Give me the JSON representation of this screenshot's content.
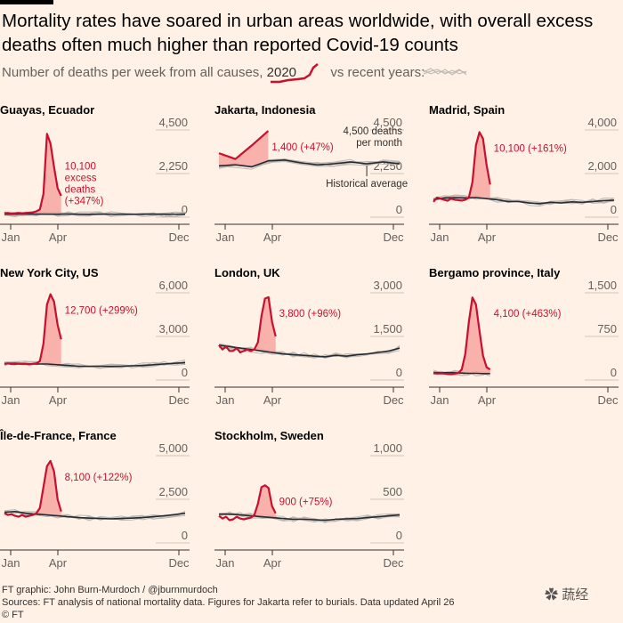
{
  "title": "Mortality rates have soared in urban areas worldwide, with overall excess deaths often much higher than reported Covid-19 counts",
  "subtitle_prefix": "Number of deaths per week from all causes,",
  "subtitle_year": "2020",
  "subtitle_suffix": "vs recent years:",
  "colors": {
    "highlight": "#c8102e",
    "fill": "#f7a6a1",
    "average": "#262a33",
    "history": "#bdb7b0",
    "bg": "#fff1e5"
  },
  "x_ticks": [
    "Jan",
    "Apr",
    "Dec"
  ],
  "footer": {
    "credit": "FT graphic: John Burn-Murdoch / @jburnmurdoch",
    "sources": "Sources: FT analysis of national mortality data. Figures for Jakarta refer to burials. Data updated April 26",
    "copyright": "© FT"
  },
  "watermark": "蔬经",
  "chart_data": [
    {
      "type": "line",
      "title": "Guayas, Ecuador",
      "yticks": [
        0,
        2250,
        4500
      ],
      "ytick_labels": [
        "0",
        "2,250",
        "4,500"
      ],
      "ylim": [
        0,
        4500
      ],
      "xlim": [
        1,
        52
      ],
      "series": [
        {
          "values_x": [
            1,
            2,
            3,
            4,
            5,
            6,
            7,
            8,
            9,
            10,
            11,
            12,
            13,
            14,
            15,
            16,
            17
          ],
          "values": [
            200,
            210,
            190,
            200,
            220,
            200,
            210,
            230,
            250,
            300,
            400,
            1200,
            4300,
            3800,
            2600,
            1500,
            1100
          ]
        },
        {
          "values_x": [
            1,
            4,
            7,
            10,
            13,
            16,
            19,
            22,
            25,
            28,
            31,
            34,
            37,
            40,
            43,
            46,
            49,
            52
          ],
          "values": [
            150,
            150,
            160,
            155,
            150,
            150,
            155,
            150,
            145,
            150,
            155,
            150,
            150,
            150,
            155,
            150,
            150,
            150
          ]
        }
      ],
      "annotation": [
        "10,100",
        "excess",
        "deaths",
        "(+347%)"
      ]
    },
    {
      "type": "line",
      "title": "Jakarta, Indonesia",
      "yticks": [
        0,
        2250,
        4500
      ],
      "ytick_labels": [
        "0",
        "2,250",
        "4,500"
      ],
      "ylim": [
        0,
        4500
      ],
      "xlim": [
        1,
        12
      ],
      "unit_note": [
        "4,500 deaths",
        "per month"
      ],
      "series": [
        {
          "values_x": [
            1,
            2,
            3,
            4
          ],
          "values": [
            3300,
            3000,
            3700,
            4450
          ]
        },
        {
          "values_x": [
            1,
            2,
            3,
            4,
            5,
            6,
            7,
            8,
            9,
            10,
            11,
            12
          ],
          "values": [
            2650,
            2700,
            2600,
            2900,
            2950,
            2800,
            2700,
            2750,
            2850,
            2750,
            2850,
            2750
          ]
        }
      ],
      "annotation": [
        "1,400 (+47%)"
      ],
      "average_label": "Historical average"
    },
    {
      "type": "line",
      "title": "Madrid, Spain",
      "yticks": [
        0,
        2000,
        4000
      ],
      "ytick_labels": [
        "0",
        "2,000",
        "4,000"
      ],
      "ylim": [
        0,
        4000
      ],
      "xlim": [
        1,
        52
      ],
      "series": [
        {
          "values_x": [
            1,
            2,
            3,
            4,
            5,
            6,
            7,
            8,
            9,
            10,
            11,
            12,
            13,
            14,
            15,
            16,
            17
          ],
          "values": [
            700,
            900,
            850,
            800,
            750,
            850,
            800,
            780,
            760,
            800,
            900,
            1600,
            3300,
            3900,
            3600,
            2400,
            1500
          ]
        },
        {
          "values_x": [
            1,
            4,
            7,
            10,
            13,
            16,
            19,
            22,
            25,
            28,
            31,
            34,
            37,
            40,
            43,
            46,
            49,
            52
          ],
          "values": [
            800,
            880,
            900,
            880,
            900,
            850,
            800,
            720,
            720,
            650,
            620,
            680,
            650,
            700,
            680,
            720,
            760,
            780
          ]
        }
      ],
      "annotation": [
        "10,100 (+161%)"
      ]
    },
    {
      "type": "line",
      "title": "New York City, US",
      "yticks": [
        0,
        3000,
        6000
      ],
      "ytick_labels": [
        "0",
        "3,000",
        "6,000"
      ],
      "ylim": [
        0,
        6000
      ],
      "xlim": [
        1,
        52
      ],
      "series": [
        {
          "values_x": [
            1,
            2,
            3,
            4,
            5,
            6,
            7,
            8,
            9,
            10,
            11,
            12,
            13,
            14,
            15,
            16,
            17
          ],
          "values": [
            1100,
            1150,
            1100,
            1100,
            1120,
            1100,
            1100,
            1080,
            1100,
            1150,
            1300,
            2500,
            5200,
            5900,
            5400,
            3800,
            2800
          ]
        },
        {
          "values_x": [
            1,
            4,
            7,
            10,
            13,
            16,
            19,
            22,
            25,
            28,
            31,
            34,
            37,
            40,
            43,
            46,
            49,
            52
          ],
          "values": [
            1150,
            1150,
            1120,
            1100,
            1100,
            1050,
            1000,
            950,
            950,
            950,
            930,
            950,
            980,
            1000,
            1050,
            1100,
            1150,
            1200
          ]
        }
      ],
      "annotation": [
        "12,700 (+299%)"
      ]
    },
    {
      "type": "line",
      "title": "London, UK",
      "yticks": [
        0,
        1500,
        3000
      ],
      "ytick_labels": [
        "0",
        "1,500",
        "3,000"
      ],
      "ylim": [
        0,
        3000
      ],
      "xlim": [
        1,
        52
      ],
      "series": [
        {
          "values_x": [
            1,
            2,
            3,
            4,
            5,
            6,
            7,
            8,
            9,
            10,
            11,
            12,
            13,
            14,
            15,
            16,
            17
          ],
          "values": [
            1200,
            1050,
            1150,
            1000,
            1000,
            1100,
            950,
            1000,
            1050,
            1000,
            1050,
            1300,
            2200,
            2800,
            2850,
            2000,
            1500
          ]
        },
        {
          "values_x": [
            1,
            4,
            7,
            10,
            13,
            16,
            19,
            22,
            25,
            28,
            31,
            34,
            37,
            40,
            43,
            46,
            49,
            52
          ],
          "values": [
            1200,
            1150,
            1100,
            1050,
            1000,
            950,
            900,
            870,
            850,
            820,
            800,
            850,
            820,
            870,
            900,
            950,
            1000,
            1100
          ]
        }
      ],
      "annotation": [
        "3,800 (+96%)"
      ]
    },
    {
      "type": "line",
      "title": "Bergamo province, Italy",
      "yticks": [
        0,
        750,
        1500
      ],
      "ytick_labels": [
        "0",
        "750",
        "1,500"
      ],
      "ylim": [
        0,
        1500
      ],
      "xlim": [
        1,
        52
      ],
      "series": [
        {
          "values_x": [
            1,
            2,
            3,
            4,
            5,
            6,
            7,
            8,
            9,
            10,
            11,
            12,
            13,
            14,
            15,
            16,
            17
          ],
          "values": [
            120,
            110,
            115,
            110,
            105,
            100,
            110,
            120,
            180,
            450,
            1000,
            1420,
            1300,
            850,
            420,
            220,
            180
          ]
        },
        {
          "values_x": [
            1,
            3,
            5,
            7,
            9,
            11,
            13,
            15,
            17
          ],
          "values": [
            130,
            125,
            130,
            125,
            120,
            115,
            115,
            110,
            110
          ]
        }
      ],
      "annotation": [
        "4,100 (+463%)"
      ]
    },
    {
      "type": "line",
      "title": "Île-de-France, France",
      "yticks": [
        0,
        2500,
        5000
      ],
      "ytick_labels": [
        "0",
        "2,500",
        "5,000"
      ],
      "ylim": [
        0,
        5000
      ],
      "xlim": [
        1,
        52
      ],
      "series": [
        {
          "values_x": [
            1,
            2,
            3,
            4,
            5,
            6,
            7,
            8,
            9,
            10,
            11,
            12,
            13,
            14,
            15,
            16,
            17
          ],
          "values": [
            1700,
            1600,
            1650,
            1550,
            1500,
            1600,
            1500,
            1550,
            1600,
            1700,
            2000,
            3200,
            4400,
            4700,
            4100,
            2500,
            1800
          ]
        },
        {
          "values_x": [
            1,
            4,
            7,
            10,
            13,
            16,
            19,
            22,
            25,
            28,
            31,
            34,
            37,
            40,
            43,
            46,
            49,
            52
          ],
          "values": [
            1750,
            1800,
            1700,
            1650,
            1600,
            1550,
            1500,
            1450,
            1420,
            1400,
            1380,
            1400,
            1420,
            1450,
            1500,
            1550,
            1620,
            1700
          ]
        }
      ],
      "annotation": [
        "8,100 (+122%)"
      ]
    },
    {
      "type": "line",
      "title": "Stockholm, Sweden",
      "yticks": [
        0,
        500,
        1000
      ],
      "ytick_labels": [
        "0",
        "500",
        "1,000"
      ],
      "ylim": [
        0,
        1000
      ],
      "xlim": [
        1,
        52
      ],
      "series": [
        {
          "values_x": [
            1,
            2,
            3,
            4,
            5,
            6,
            7,
            8,
            9,
            10,
            11,
            12,
            13,
            14,
            15,
            16,
            17
          ],
          "values": [
            310,
            280,
            300,
            260,
            270,
            300,
            280,
            270,
            280,
            290,
            320,
            450,
            640,
            660,
            630,
            420,
            340
          ]
        },
        {
          "values_x": [
            1,
            4,
            7,
            10,
            13,
            16,
            19,
            22,
            25,
            28,
            31,
            34,
            37,
            40,
            43,
            46,
            49,
            52
          ],
          "values": [
            330,
            330,
            320,
            310,
            300,
            290,
            280,
            270,
            270,
            265,
            260,
            270,
            275,
            280,
            290,
            300,
            310,
            320
          ]
        }
      ],
      "annotation": [
        "900 (+75%)"
      ]
    }
  ]
}
